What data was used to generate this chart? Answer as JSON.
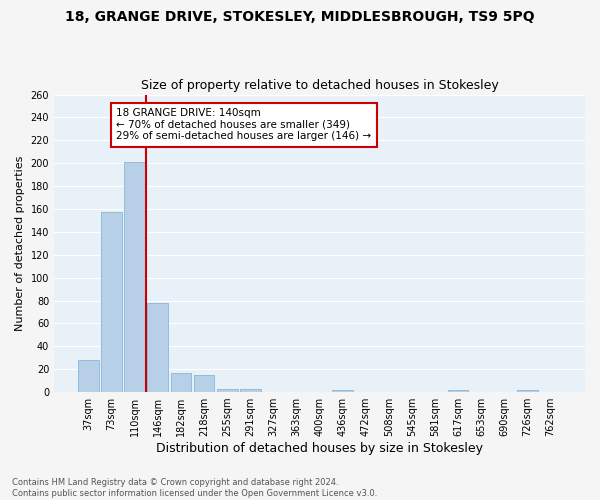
{
  "title": "18, GRANGE DRIVE, STOKESLEY, MIDDLESBROUGH, TS9 5PQ",
  "subtitle": "Size of property relative to detached houses in Stokesley",
  "xlabel": "Distribution of detached houses by size in Stokesley",
  "ylabel": "Number of detached properties",
  "bar_labels": [
    "37sqm",
    "73sqm",
    "110sqm",
    "146sqm",
    "182sqm",
    "218sqm",
    "255sqm",
    "291sqm",
    "327sqm",
    "363sqm",
    "400sqm",
    "436sqm",
    "472sqm",
    "508sqm",
    "545sqm",
    "581sqm",
    "617sqm",
    "653sqm",
    "690sqm",
    "726sqm",
    "762sqm"
  ],
  "bar_values": [
    28,
    157,
    201,
    78,
    17,
    15,
    3,
    3,
    0,
    0,
    0,
    2,
    0,
    0,
    0,
    0,
    2,
    0,
    0,
    2,
    0
  ],
  "bar_color": "#b8cfe8",
  "bar_edge_color": "#7aafd4",
  "vline_color": "#cc0000",
  "annotation_text": "18 GRANGE DRIVE: 140sqm\n← 70% of detached houses are smaller (349)\n29% of semi-detached houses are larger (146) →",
  "annotation_box_color": "#ffffff",
  "annotation_box_edge_color": "#cc0000",
  "ylim": [
    0,
    260
  ],
  "yticks": [
    0,
    20,
    40,
    60,
    80,
    100,
    120,
    140,
    160,
    180,
    200,
    220,
    240,
    260
  ],
  "bg_color": "#e8f0f8",
  "grid_color": "#ffffff",
  "fig_bg_color": "#f5f5f5",
  "footer_text": "Contains HM Land Registry data © Crown copyright and database right 2024.\nContains public sector information licensed under the Open Government Licence v3.0.",
  "title_fontsize": 10,
  "subtitle_fontsize": 9,
  "xlabel_fontsize": 9,
  "ylabel_fontsize": 8,
  "tick_fontsize": 7,
  "annotation_fontsize": 7.5,
  "footer_fontsize": 6
}
